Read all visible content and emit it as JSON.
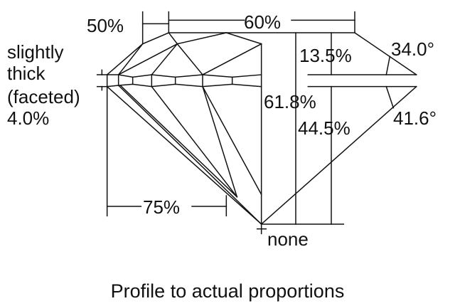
{
  "labels": {
    "table_half": "50%",
    "table": "60%",
    "girdle": [
      "slightly",
      "thick",
      "(faceted)",
      "4.0%"
    ],
    "crown_height": "13.5%",
    "crown_angle": "34.0°",
    "total_depth": "61.8%",
    "pavilion_depth": "44.5%",
    "pavilion_angle": "41.6°",
    "lower_half": "75%",
    "culet": "none"
  },
  "caption": "Profile to actual proportions"
}
